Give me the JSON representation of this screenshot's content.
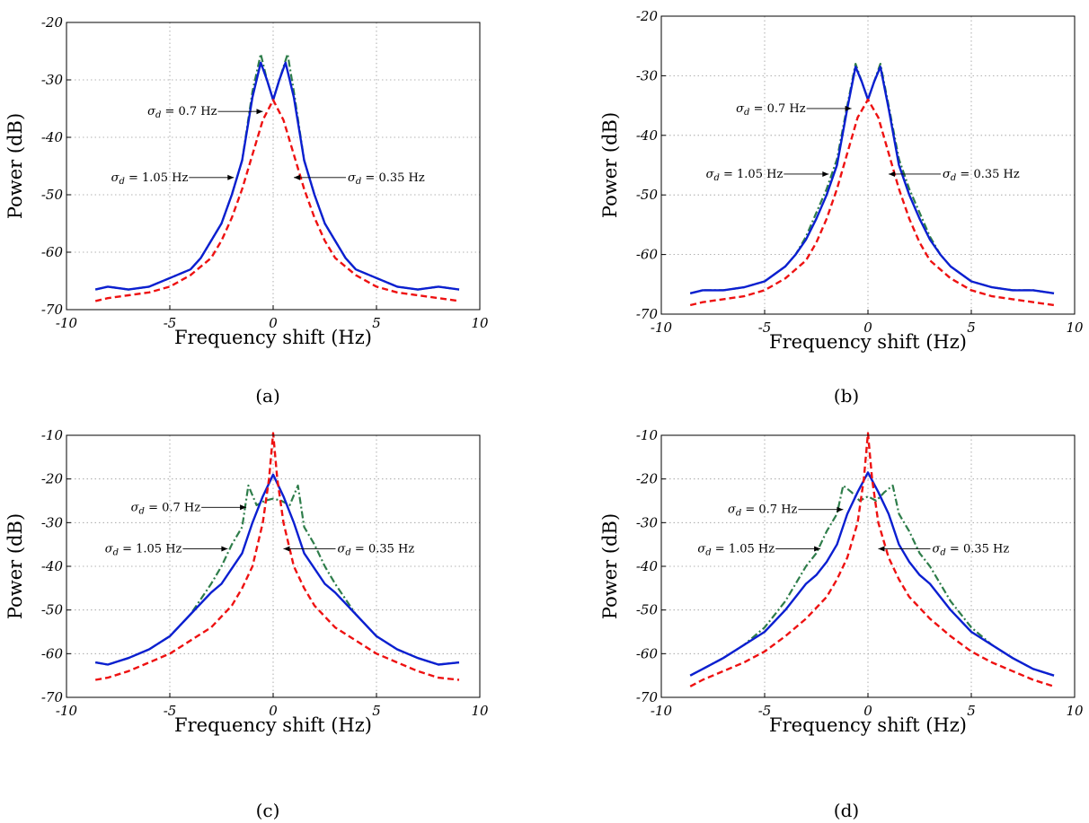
{
  "chart_data": [
    {
      "type": "line",
      "panel_label": "(a)",
      "xlabel": "Frequency shift (Hz)",
      "ylabel": "Power (dB)",
      "xlim": [
        -10,
        10
      ],
      "ylim": [
        -70,
        -20
      ],
      "xticks": [
        -10,
        -5,
        0,
        5,
        10
      ],
      "yticks": [
        -20,
        -30,
        -40,
        -50,
        -60,
        -70
      ],
      "grid": true,
      "series": [
        {
          "color": "#2e7d4a",
          "style": "dashdot",
          "x": [
            -8.6,
            -8,
            -7,
            -6,
            -5,
            -4,
            -3.5,
            -3,
            -2.5,
            -2,
            -1.5,
            -1,
            -0.6,
            -0.3,
            0,
            0.3,
            0.7,
            1,
            1.5,
            2,
            2.5,
            3,
            3.5,
            4,
            5,
            6,
            7,
            8,
            9
          ],
          "y": [
            -66.5,
            -66,
            -66.5,
            -66,
            -64.5,
            -63,
            -61,
            -58,
            -55,
            -50,
            -44,
            -32,
            -25.5,
            -30,
            -33.5,
            -30,
            -25.5,
            -32,
            -44,
            -50,
            -55,
            -58,
            -61,
            -63,
            -64.5,
            -66,
            -66.5,
            -66,
            -66.5
          ]
        },
        {
          "color": "#0b1fd1",
          "style": "solid",
          "x": [
            -8.6,
            -8,
            -7,
            -6,
            -5,
            -4,
            -3.5,
            -3,
            -2.5,
            -2,
            -1.5,
            -1,
            -0.6,
            -0.3,
            0,
            0.3,
            0.6,
            1,
            1.5,
            2,
            2.5,
            3,
            3.5,
            4,
            5,
            6,
            7,
            8,
            9
          ],
          "y": [
            -66.5,
            -66,
            -66.5,
            -66,
            -64.5,
            -63,
            -61,
            -58,
            -55,
            -50,
            -44,
            -33,
            -27,
            -30,
            -33.5,
            -30,
            -27,
            -33,
            -44,
            -50,
            -55,
            -58,
            -61,
            -63,
            -64.5,
            -66,
            -66.5,
            -66,
            -66.5
          ]
        },
        {
          "color": "#ee1111",
          "style": "dashed",
          "x": [
            -8.6,
            -8,
            -7,
            -6,
            -5,
            -4,
            -3,
            -2.5,
            -2,
            -1.5,
            -1,
            -0.5,
            0,
            0.5,
            1,
            1.5,
            2,
            2.5,
            3,
            4,
            5,
            6,
            7,
            8,
            9
          ],
          "y": [
            -68.5,
            -68,
            -67.5,
            -67,
            -66,
            -64,
            -61,
            -58,
            -54,
            -49,
            -43,
            -37,
            -33.5,
            -37,
            -43,
            -49,
            -54,
            -58,
            -61,
            -64,
            -66,
            -67,
            -67.5,
            -68,
            -68.5
          ]
        }
      ],
      "annotations": [
        {
          "text": "σd = 0.7 Hz",
          "x": -0.5,
          "y": -35.5,
          "side": "left"
        },
        {
          "text": "σd = 1.05 Hz",
          "x": -1.9,
          "y": -47,
          "side": "left"
        },
        {
          "text": "σd = 0.35 Hz",
          "x": 1.0,
          "y": -47,
          "side": "right"
        }
      ]
    },
    {
      "type": "line",
      "panel_label": "(b)",
      "xlabel": "Frequency shift (Hz)",
      "ylabel": "Power (dB)",
      "xlim": [
        -10,
        10
      ],
      "ylim": [
        -70,
        -20
      ],
      "xticks": [
        -10,
        -5,
        0,
        5,
        10
      ],
      "yticks": [
        -20,
        -30,
        -40,
        -50,
        -60,
        -70
      ],
      "grid": true,
      "series": [
        {
          "color": "#2e7d4a",
          "style": "dashdot",
          "x": [
            -8.6,
            -8,
            -7,
            -6,
            -5,
            -4,
            -3.5,
            -3,
            -2.5,
            -2,
            -1.5,
            -1,
            -0.6,
            -0.3,
            0,
            0.3,
            0.6,
            1,
            1.5,
            2,
            2.5,
            3,
            3.5,
            4,
            5,
            6,
            7,
            8,
            9
          ],
          "y": [
            -66.5,
            -66,
            -66,
            -65.5,
            -64.5,
            -62,
            -60,
            -57,
            -53,
            -49,
            -44,
            -35,
            -28,
            -31,
            -34,
            -31,
            -28,
            -35,
            -44,
            -49,
            -53,
            -57,
            -60,
            -62,
            -64.5,
            -65.5,
            -66,
            -66,
            -66.5
          ]
        },
        {
          "color": "#0b1fd1",
          "style": "solid",
          "x": [
            -8.6,
            -8,
            -7,
            -6,
            -5,
            -4,
            -3.5,
            -3,
            -2.5,
            -2,
            -1.5,
            -1,
            -0.6,
            -0.3,
            0,
            0.3,
            0.6,
            1,
            1.5,
            2,
            2.5,
            3,
            3.5,
            4,
            5,
            6,
            7,
            8,
            9
          ],
          "y": [
            -66.5,
            -66,
            -66,
            -65.5,
            -64.5,
            -62,
            -60,
            -57.5,
            -54,
            -50,
            -45,
            -35.5,
            -28.5,
            -31,
            -34,
            -31,
            -28.5,
            -35.5,
            -45,
            -50,
            -54,
            -57.5,
            -60,
            -62,
            -64.5,
            -65.5,
            -66,
            -66,
            -66.5
          ]
        },
        {
          "color": "#ee1111",
          "style": "dashed",
          "x": [
            -8.6,
            -8,
            -7,
            -6,
            -5,
            -4,
            -3,
            -2.5,
            -2,
            -1.5,
            -1,
            -0.5,
            0,
            0.5,
            1,
            1.5,
            2,
            2.5,
            3,
            4,
            5,
            6,
            7,
            8,
            9
          ],
          "y": [
            -68.5,
            -68,
            -67.5,
            -67,
            -66,
            -64,
            -61,
            -58,
            -54,
            -49,
            -43,
            -37,
            -34,
            -37,
            -43,
            -49,
            -54,
            -58,
            -61,
            -64,
            -66,
            -67,
            -67.5,
            -68,
            -68.5
          ]
        }
      ],
      "annotations": [
        {
          "text": "σd = 0.7 Hz",
          "x": -0.8,
          "y": -35.5,
          "side": "left"
        },
        {
          "text": "σd = 1.05 Hz",
          "x": -1.9,
          "y": -46.5,
          "side": "left"
        },
        {
          "text": "σd = 0.35 Hz",
          "x": 1.0,
          "y": -46.5,
          "side": "right"
        }
      ]
    },
    {
      "type": "line",
      "panel_label": "(c)",
      "xlabel": "Frequency shift (Hz)",
      "ylabel": "Power (dB)",
      "xlim": [
        -10,
        10
      ],
      "ylim": [
        -70,
        -10
      ],
      "xticks": [
        -10,
        -5,
        0,
        5,
        10
      ],
      "yticks": [
        -10,
        -20,
        -30,
        -40,
        -50,
        -60,
        -70
      ],
      "grid": true,
      "series": [
        {
          "color": "#2e7d4a",
          "style": "dashdot",
          "x": [
            -8.6,
            -8,
            -7,
            -6,
            -5,
            -4,
            -3,
            -2.5,
            -2,
            -1.5,
            -1.2,
            -0.8,
            -0.4,
            0,
            0.4,
            0.8,
            1.2,
            1.5,
            2,
            2.5,
            3,
            4,
            5,
            6,
            7,
            8,
            9
          ],
          "y": [
            -62,
            -62.5,
            -61,
            -59,
            -56,
            -51,
            -44,
            -40,
            -35,
            -31,
            -21.5,
            -26,
            -25,
            -24.5,
            -25,
            -26,
            -21.5,
            -31,
            -35,
            -40,
            -44,
            -51,
            -56,
            -59,
            -61,
            -62.5,
            -62
          ]
        },
        {
          "color": "#0b1fd1",
          "style": "solid",
          "x": [
            -8.6,
            -8,
            -7,
            -6,
            -5,
            -4,
            -3,
            -2.5,
            -2,
            -1.5,
            -1,
            -0.5,
            0,
            0.5,
            1,
            1.5,
            2,
            2.5,
            3,
            4,
            5,
            6,
            7,
            8,
            9
          ],
          "y": [
            -62,
            -62.5,
            -61,
            -59,
            -56,
            -51,
            -46,
            -44,
            -40.5,
            -37,
            -30,
            -24,
            -19,
            -24,
            -30,
            -37,
            -40.5,
            -44,
            -46,
            -51,
            -56,
            -59,
            -61,
            -62.5,
            -62
          ]
        },
        {
          "color": "#ee1111",
          "style": "dashed",
          "x": [
            -8.6,
            -8,
            -7,
            -6,
            -5,
            -4,
            -3,
            -2,
            -1.5,
            -1,
            -0.5,
            -0.2,
            0,
            0.2,
            0.5,
            1,
            1.5,
            2,
            3,
            4,
            5,
            6,
            7,
            8,
            9
          ],
          "y": [
            -66,
            -65.5,
            -64,
            -62,
            -60,
            -57,
            -54,
            -49,
            -45,
            -40,
            -30,
            -20,
            -9.5,
            -20,
            -30,
            -40,
            -45,
            -49,
            -54,
            -57,
            -60,
            -62,
            -64,
            -65.5,
            -66
          ]
        }
      ],
      "annotations": [
        {
          "text": "σd = 0.7 Hz",
          "x": -1.3,
          "y": -26.5,
          "side": "left"
        },
        {
          "text": "σd = 1.05 Hz",
          "x": -2.2,
          "y": -36,
          "side": "left"
        },
        {
          "text": "σd = 0.35 Hz",
          "x": 0.5,
          "y": -36,
          "side": "right"
        }
      ]
    },
    {
      "type": "line",
      "panel_label": "(d)",
      "xlabel": "Frequency shift (Hz)",
      "ylabel": "Power (dB)",
      "xlim": [
        -10,
        10
      ],
      "ylim": [
        -70,
        -10
      ],
      "xticks": [
        -10,
        -5,
        0,
        5,
        10
      ],
      "yticks": [
        -10,
        -20,
        -30,
        -40,
        -50,
        -60,
        -70
      ],
      "grid": true,
      "series": [
        {
          "color": "#2e7d4a",
          "style": "dashdot",
          "x": [
            -8.6,
            -8,
            -7,
            -6,
            -5,
            -4,
            -3,
            -2.5,
            -2,
            -1.5,
            -1.2,
            -0.8,
            -0.4,
            0,
            0.4,
            0.8,
            1.2,
            1.5,
            2,
            2.5,
            3,
            4,
            5,
            6,
            7,
            8,
            9
          ],
          "y": [
            -65,
            -63.5,
            -61,
            -58,
            -54,
            -48,
            -40,
            -37,
            -32,
            -28,
            -21.5,
            -23,
            -25,
            -24,
            -25,
            -23,
            -21.5,
            -28,
            -32,
            -37,
            -40,
            -48,
            -54,
            -58,
            -61,
            -63.5,
            -65
          ]
        },
        {
          "color": "#0b1fd1",
          "style": "solid",
          "x": [
            -8.6,
            -8,
            -7,
            -6,
            -5,
            -4,
            -3,
            -2.5,
            -2,
            -1.5,
            -1,
            -0.5,
            0,
            0.5,
            1,
            1.5,
            2,
            2.5,
            3,
            4,
            5,
            6,
            7,
            8,
            9
          ],
          "y": [
            -65,
            -63.5,
            -61,
            -58,
            -55,
            -50,
            -44,
            -42,
            -39,
            -35,
            -28,
            -23,
            -18.5,
            -23,
            -28,
            -35,
            -39,
            -42,
            -44,
            -50,
            -55,
            -58,
            -61,
            -63.5,
            -65
          ]
        },
        {
          "color": "#ee1111",
          "style": "dashed",
          "x": [
            -8.6,
            -8,
            -7,
            -6,
            -5,
            -4,
            -3,
            -2,
            -1.5,
            -1,
            -0.5,
            -0.2,
            0,
            0.2,
            0.5,
            1,
            1.5,
            2,
            3,
            4,
            5,
            6,
            7,
            8,
            9
          ],
          "y": [
            -67.5,
            -66,
            -64,
            -62,
            -59.5,
            -56,
            -52,
            -47,
            -43,
            -38,
            -30,
            -20,
            -9.5,
            -20,
            -30,
            -38,
            -43,
            -47,
            -52,
            -56,
            -59.5,
            -62,
            -64,
            -66,
            -67.5
          ]
        }
      ],
      "annotations": [
        {
          "text": "σd = 0.7 Hz",
          "x": -1.2,
          "y": -27,
          "side": "left"
        },
        {
          "text": "σd = 1.05 Hz",
          "x": -2.3,
          "y": -36,
          "side": "left"
        },
        {
          "text": "σd = 0.35 Hz",
          "x": 0.5,
          "y": -36,
          "side": "right"
        }
      ]
    }
  ]
}
